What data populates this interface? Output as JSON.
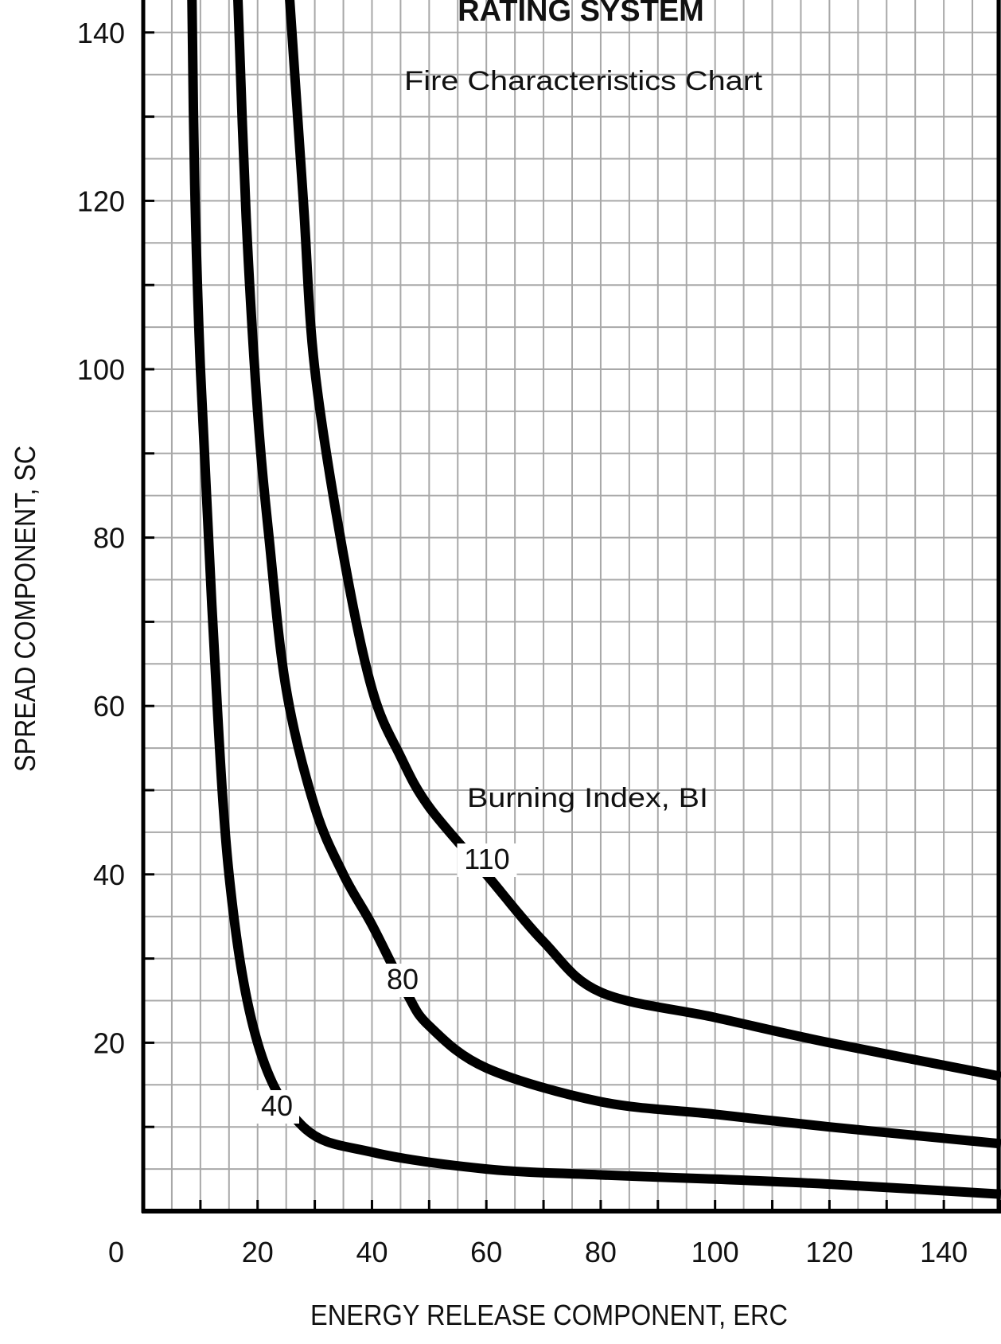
{
  "chart_data": {
    "type": "line",
    "title": "RATING SYSTEM",
    "subtitle": "Fire Characteristics Chart",
    "xlabel": "ENERGY RELEASE COMPONENT, ERC",
    "ylabel": "SPREAD COMPONENT, SC",
    "xlim": [
      0,
      150
    ],
    "ylim": [
      0,
      145
    ],
    "x_ticks": [
      0,
      20,
      40,
      60,
      80,
      100,
      120,
      140
    ],
    "y_ticks": [
      20,
      40,
      60,
      80,
      100,
      120,
      140
    ],
    "grid": true,
    "annotation": "Burning Index, BI",
    "series": [
      {
        "name": "40",
        "x": [
          8.5,
          9,
          10,
          12,
          15,
          20,
          28,
          40,
          60,
          80,
          100,
          120,
          150
        ],
        "y": [
          145,
          122,
          100,
          72,
          40,
          20,
          10,
          7,
          5,
          4.3,
          3.8,
          3.2,
          2
        ]
      },
      {
        "name": "80",
        "x": [
          16.5,
          18,
          20,
          22,
          25,
          30,
          35,
          40,
          46,
          50,
          60,
          80,
          100,
          120,
          150
        ],
        "y": [
          145,
          118,
          95,
          80,
          62,
          48,
          40,
          34,
          26,
          22,
          17,
          13,
          11.5,
          10,
          8
        ]
      },
      {
        "name": "110",
        "x": [
          25.5,
          28,
          30,
          35,
          40,
          45,
          50,
          60,
          70,
          80,
          100,
          120,
          150
        ],
        "y": [
          145,
          120,
          100,
          78,
          62,
          54,
          48,
          40,
          32,
          26,
          23,
          20,
          16
        ]
      }
    ]
  }
}
